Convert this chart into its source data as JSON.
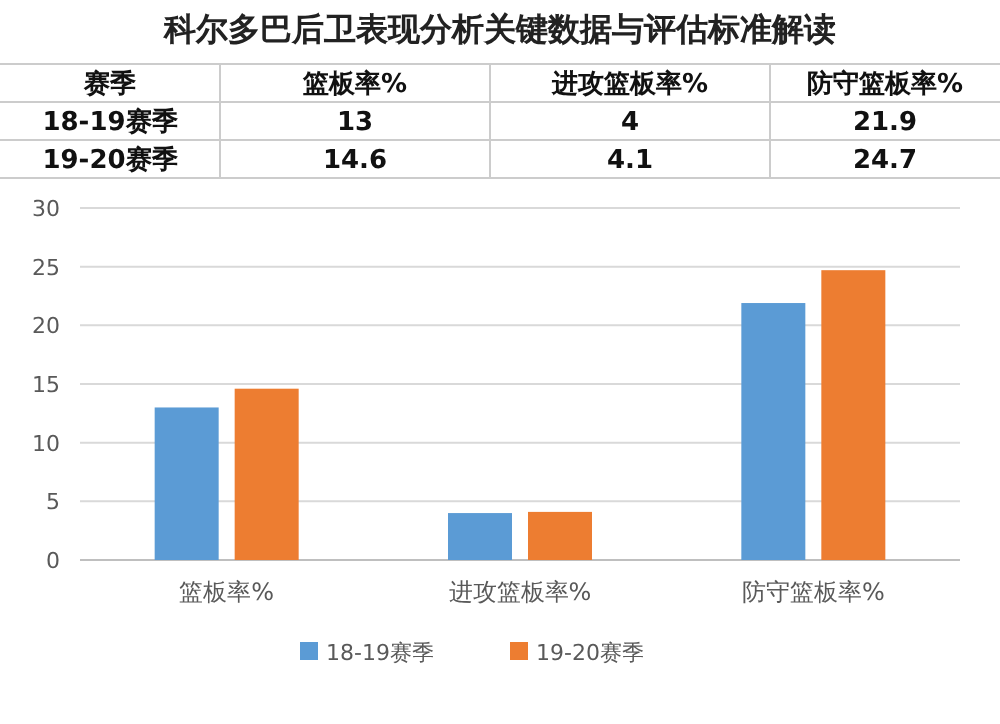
{
  "chart_data": {
    "type": "bar",
    "title": "科尔多巴后卫表现分析关键数据与评估标准解读",
    "categories": [
      "篮板率%",
      "进攻篮板率%",
      "防守篮板率%"
    ],
    "series": [
      {
        "name": "18-19赛季",
        "color": "#5b9bd5",
        "values": [
          13,
          4,
          21.9
        ]
      },
      {
        "name": "19-20赛季",
        "color": "#ed7d31",
        "values": [
          14.6,
          4.1,
          24.7
        ]
      }
    ],
    "ylim": [
      0,
      30
    ],
    "yticks": [
      0,
      5,
      10,
      15,
      20,
      25,
      30
    ],
    "grid": "y",
    "legend": "bottom",
    "data_labels": true,
    "annotations": [
      "赛季"
    ]
  }
}
